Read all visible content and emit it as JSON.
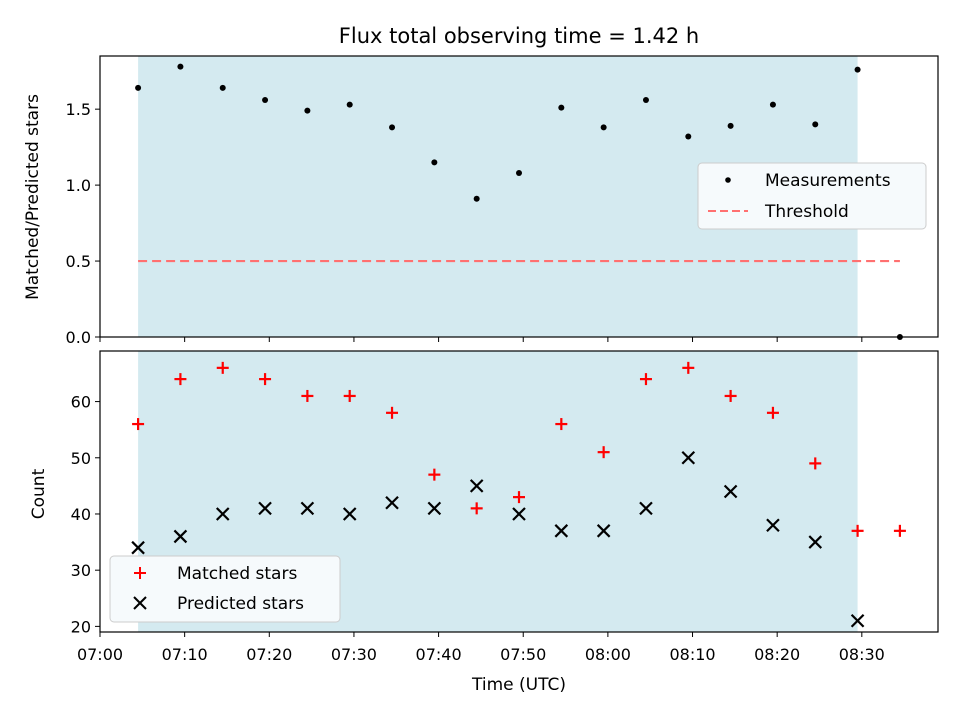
{
  "chart_data": [
    {
      "type": "scatter",
      "title": "Flux total observing time = 1.42 h",
      "xlabel": "",
      "ylabel": "Matched/Predicted stars",
      "ylim": [
        0,
        1.85
      ],
      "yticks": [
        "0.0",
        "0.5",
        "1.0",
        "1.5"
      ],
      "x_range": [
        "07:00",
        "08:39"
      ],
      "shaded_span": [
        "07:04:30",
        "08:29:30"
      ],
      "shade_color": "#d4eaf0",
      "legend": "center-right",
      "series": [
        {
          "name": "Measurements",
          "marker": "dot",
          "color": "#000000",
          "x": [
            "07:04:30",
            "07:09:30",
            "07:14:30",
            "07:19:30",
            "07:24:30",
            "07:29:30",
            "07:34:30",
            "07:39:30",
            "07:44:30",
            "07:49:30",
            "07:54:30",
            "07:59:30",
            "08:04:30",
            "08:09:30",
            "08:14:30",
            "08:19:30",
            "08:24:30",
            "08:29:30",
            "08:34:30"
          ],
          "y": [
            1.64,
            1.78,
            1.64,
            1.56,
            1.49,
            1.53,
            1.38,
            1.15,
            0.91,
            1.08,
            1.51,
            1.38,
            1.56,
            1.32,
            1.39,
            1.53,
            1.4,
            1.76,
            0.0
          ]
        },
        {
          "name": "Threshold",
          "marker": "dashed-line",
          "color": "#ff7070",
          "x": [
            "07:04:30",
            "08:34:30"
          ],
          "y": [
            0.5,
            0.5
          ]
        }
      ]
    },
    {
      "type": "scatter",
      "title": "",
      "xlabel": "Time (UTC)",
      "ylabel": "Count",
      "ylim": [
        19,
        69
      ],
      "yticks": [
        "20",
        "30",
        "40",
        "50",
        "60"
      ],
      "xticks": [
        "07:00",
        "07:10",
        "07:20",
        "07:30",
        "07:40",
        "07:50",
        "08:00",
        "08:10",
        "08:20",
        "08:30"
      ],
      "x_range": [
        "07:00",
        "08:39"
      ],
      "shaded_span": [
        "07:04:30",
        "08:29:30"
      ],
      "shade_color": "#d4eaf0",
      "legend": "lower-left",
      "series": [
        {
          "name": "Matched stars",
          "marker": "plus",
          "color": "#ff0000",
          "x": [
            "07:04:30",
            "07:09:30",
            "07:14:30",
            "07:19:30",
            "07:24:30",
            "07:29:30",
            "07:34:30",
            "07:39:30",
            "07:44:30",
            "07:49:30",
            "07:54:30",
            "07:59:30",
            "08:04:30",
            "08:09:30",
            "08:14:30",
            "08:19:30",
            "08:24:30",
            "08:29:30",
            "08:34:30"
          ],
          "y": [
            56,
            64,
            66,
            64,
            61,
            61,
            58,
            47,
            41,
            43,
            56,
            51,
            64,
            66,
            61,
            58,
            49,
            37,
            37
          ]
        },
        {
          "name": "Predicted stars",
          "marker": "cross",
          "color": "#000000",
          "x": [
            "07:04:30",
            "07:09:30",
            "07:14:30",
            "07:19:30",
            "07:24:30",
            "07:29:30",
            "07:34:30",
            "07:39:30",
            "07:44:30",
            "07:49:30",
            "07:54:30",
            "07:59:30",
            "08:04:30",
            "08:09:30",
            "08:14:30",
            "08:19:30",
            "08:24:30",
            "08:29:30"
          ],
          "y": [
            34,
            36,
            40,
            41,
            41,
            40,
            42,
            41,
            45,
            40,
            37,
            37,
            41,
            50,
            44,
            38,
            35,
            21
          ]
        }
      ]
    }
  ]
}
